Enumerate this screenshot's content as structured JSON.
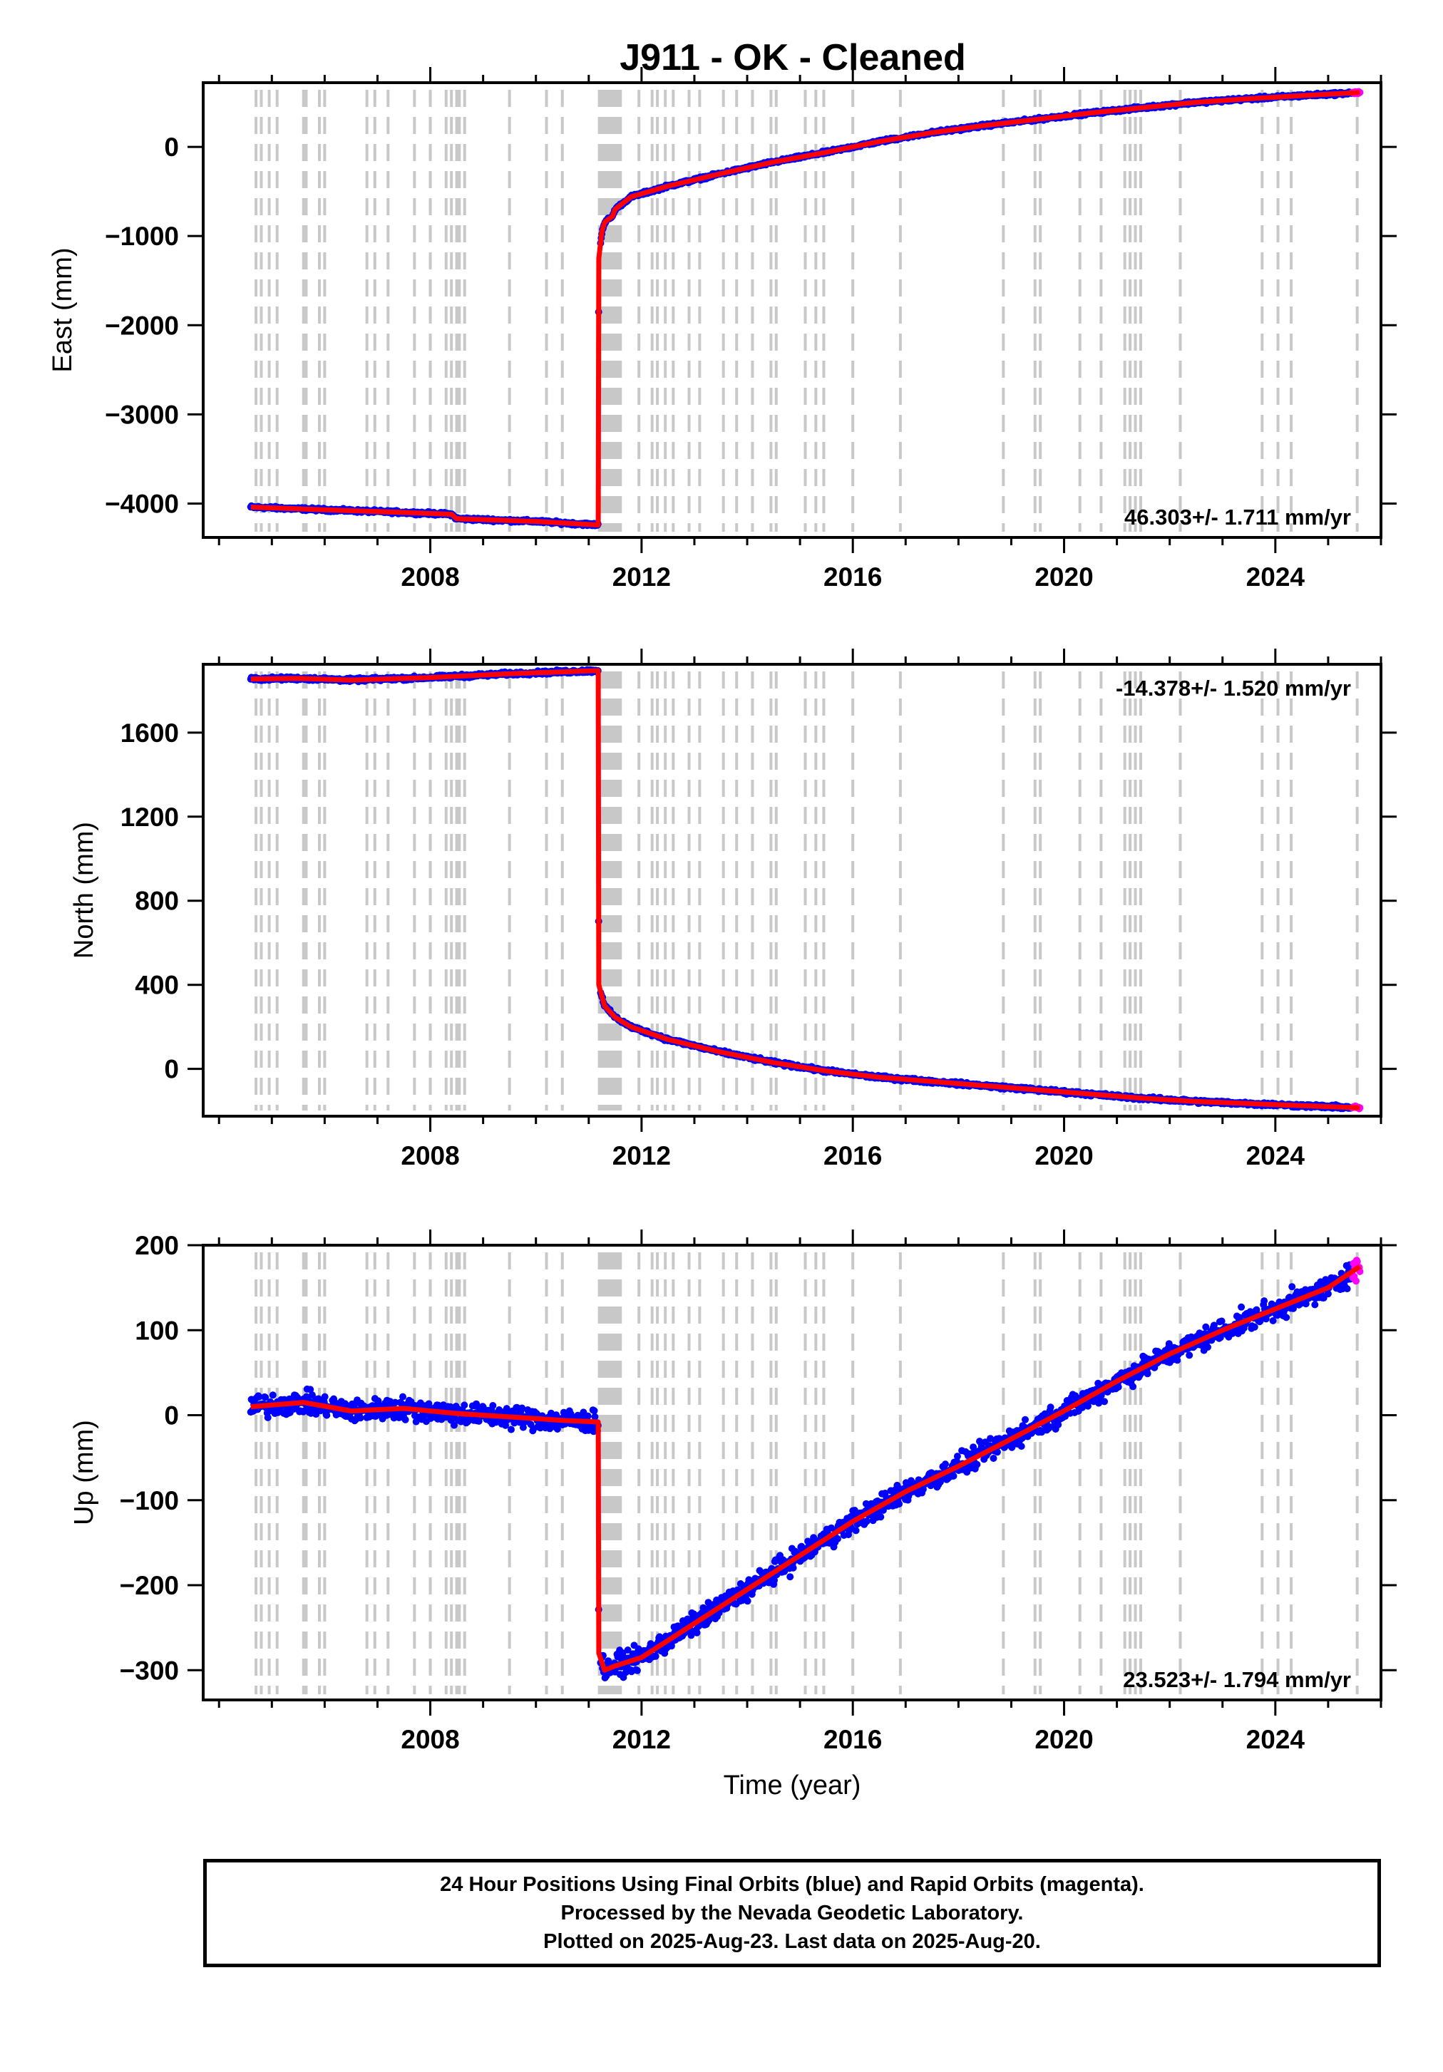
{
  "title": "J911  - OK - Cleaned",
  "colors": {
    "final": "#0000ff",
    "rapid": "#ff00ff",
    "model": "#ff0000",
    "steps": "#c8c8c8"
  },
  "footer": {
    "line1": "24 Hour Positions Using Final Orbits (blue) and Rapid Orbits (magenta).",
    "line2": "Processed by the Nevada Geodetic Laboratory.",
    "line3": "Plotted on 2025-Aug-23. Last data on 2025-Aug-20."
  },
  "chart_data": [
    {
      "type": "scatter",
      "ylabel": "East (mm)",
      "xlabel": "",
      "xlim": [
        2003.7,
        2026.0
      ],
      "ylim": [
        -4380,
        720
      ],
      "xticks": [
        2008,
        2012,
        2016,
        2020,
        2024
      ],
      "yticks": [
        -4000,
        -3000,
        -2000,
        -1000,
        0
      ],
      "ytick_labels": [
        "−4000",
        "−3000",
        "−2000",
        "−1000",
        "0"
      ],
      "rate": "46.303+/- 1.711 mm/yr",
      "rate_position": "bottom-right",
      "trend_x": [
        2004.6,
        2006.0,
        2007.5,
        2008.4,
        2008.5,
        2010.0,
        2011.18,
        2011.19,
        2011.25,
        2011.3,
        2011.35,
        2011.45,
        2011.5,
        2011.8,
        2012.5,
        2013.5,
        2014.5,
        2015.5,
        2016.5,
        2017.5,
        2018.5,
        2019.5,
        2020.5,
        2021.5,
        2022.5,
        2023.5,
        2024.5,
        2025.6
      ],
      "trend_y": [
        -4040,
        -4070,
        -4100,
        -4120,
        -4170,
        -4200,
        -4240,
        -1250,
        -950,
        -850,
        -820,
        -780,
        -700,
        -560,
        -440,
        -300,
        -170,
        -60,
        60,
        160,
        240,
        310,
        380,
        440,
        500,
        540,
        575,
        610
      ],
      "noise": 14,
      "rapid_from": 2025.45
    },
    {
      "type": "scatter",
      "ylabel": "North (mm)",
      "xlabel": "",
      "xlim": [
        2003.7,
        2026.0
      ],
      "ylim": [
        -225,
        1925
      ],
      "xticks": [
        2008,
        2012,
        2016,
        2020,
        2024
      ],
      "yticks": [
        0,
        400,
        800,
        1200,
        1600
      ],
      "ytick_labels": [
        "0",
        "400",
        "800",
        "1200",
        "1600"
      ],
      "rate": "-14.378+/- 1.520 mm/yr",
      "rate_position": "top-right",
      "trend_x": [
        2004.6,
        2005.5,
        2006.5,
        2008.0,
        2009.5,
        2011.18,
        2011.19,
        2011.3,
        2011.5,
        2011.8,
        2012.5,
        2013.5,
        2014.5,
        2015.5,
        2016.5,
        2017.5,
        2018.5,
        2019.5,
        2020.5,
        2021.5,
        2022.5,
        2023.5,
        2024.5,
        2025.6
      ],
      "trend_y": [
        1855,
        1858,
        1850,
        1862,
        1880,
        1895,
        400,
        300,
        245,
        200,
        140,
        80,
        30,
        -10,
        -40,
        -60,
        -80,
        -100,
        -120,
        -140,
        -155,
        -165,
        -175,
        -185
      ],
      "noise": 7,
      "rapid_from": 2025.45
    },
    {
      "type": "scatter",
      "ylabel": "Up (mm)",
      "xlabel": "Time (year)",
      "xlim": [
        2003.7,
        2026.0
      ],
      "ylim": [
        -335,
        200
      ],
      "xticks": [
        2008,
        2012,
        2016,
        2020,
        2024
      ],
      "yticks": [
        -300,
        -200,
        -100,
        0,
        100,
        200
      ],
      "ytick_labels": [
        "−300",
        "−200",
        "−100",
        "0",
        "100",
        "200"
      ],
      "rate": "23.523+/- 1.794 mm/yr",
      "rate_position": "bottom-right",
      "trend_x": [
        2004.6,
        2005.6,
        2006.5,
        2007.5,
        2008.5,
        2009.5,
        2010.5,
        2011.18,
        2011.19,
        2011.3,
        2011.5,
        2012.0,
        2013.0,
        2014.0,
        2015.0,
        2016.0,
        2017.0,
        2018.0,
        2019.0,
        2020.0,
        2021.0,
        2022.0,
        2023.0,
        2024.0,
        2025.0,
        2025.6
      ],
      "trend_y": [
        10,
        15,
        5,
        8,
        2,
        -2,
        -6,
        -8,
        -280,
        -300,
        -295,
        -285,
        -245,
        -205,
        -165,
        -125,
        -90,
        -60,
        -28,
        5,
        40,
        72,
        100,
        125,
        150,
        175
      ],
      "noise": 11,
      "rapid_from": 2025.45
    }
  ]
}
